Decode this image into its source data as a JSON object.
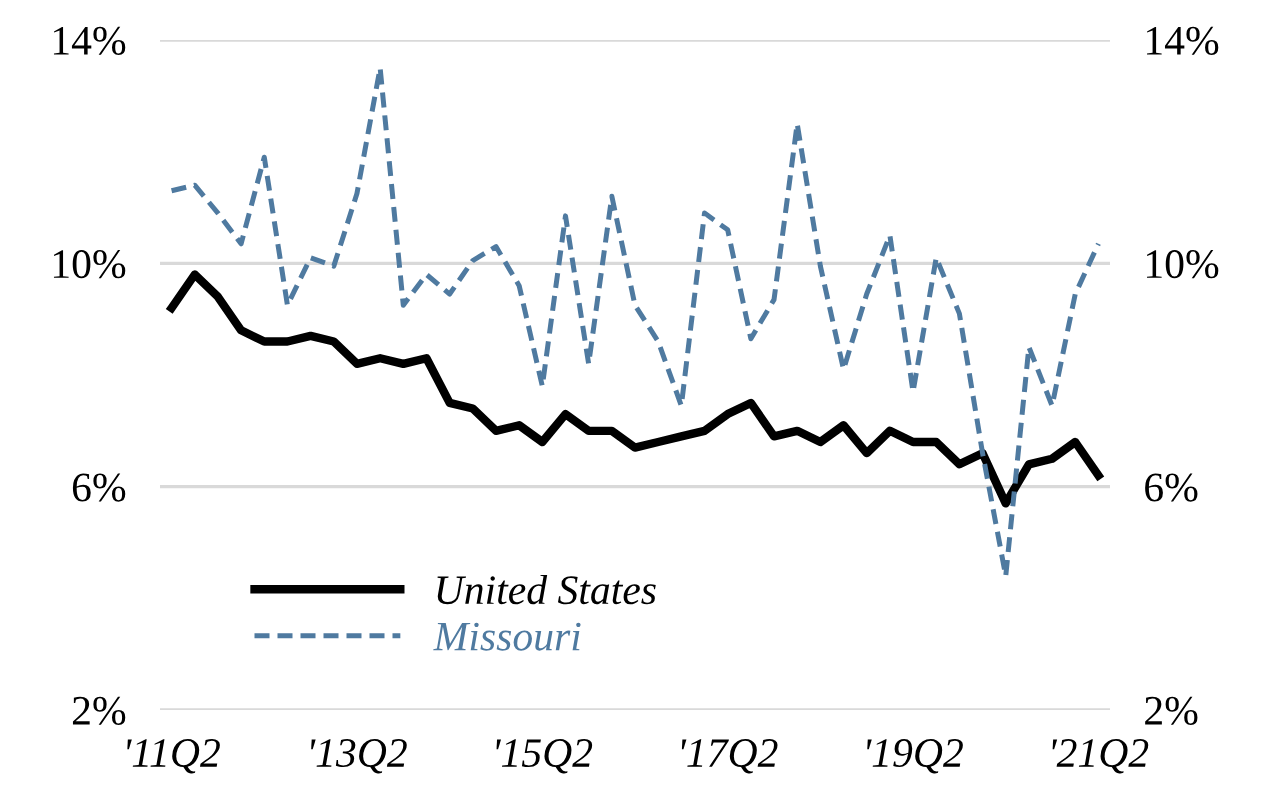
{
  "chart_data": {
    "type": "line",
    "categories": [
      "'11Q2",
      null,
      null,
      null,
      null,
      null,
      null,
      null,
      "'13Q2",
      null,
      null,
      null,
      null,
      null,
      null,
      null,
      "'15Q2",
      null,
      null,
      null,
      null,
      null,
      null,
      null,
      "'17Q2",
      null,
      null,
      null,
      null,
      null,
      null,
      null,
      "'19Q2",
      null,
      null,
      null,
      null,
      null,
      null,
      null,
      "'21Q2"
    ],
    "series": [
      {
        "name": "United States",
        "color": "#000000",
        "line_style": "solid",
        "values": [
          9.2,
          9.8,
          9.4,
          8.8,
          8.6,
          8.6,
          8.7,
          8.6,
          8.2,
          8.3,
          8.2,
          8.3,
          7.5,
          7.4,
          7.0,
          7.1,
          6.8,
          7.3,
          7.0,
          7.0,
          6.7,
          6.8,
          6.9,
          7.0,
          7.3,
          7.5,
          6.9,
          7.0,
          6.8,
          7.1,
          6.6,
          7.0,
          6.8,
          6.8,
          6.4,
          6.6,
          5.7,
          6.4,
          6.5,
          6.8,
          6.2
        ]
      },
      {
        "name": "Missouri",
        "color": "#4f7aa0",
        "line_style": "dashed",
        "values": [
          11.3,
          11.4,
          10.9,
          10.35,
          11.9,
          9.25,
          10.1,
          9.95,
          11.25,
          13.5,
          9.25,
          9.8,
          9.45,
          10.05,
          10.3,
          9.6,
          7.8,
          10.85,
          8.2,
          11.2,
          9.25,
          8.6,
          7.45,
          10.9,
          10.6,
          8.65,
          9.35,
          12.5,
          9.95,
          8.1,
          9.45,
          10.5,
          7.7,
          10.1,
          9.1,
          6.6,
          4.4,
          8.5,
          7.45,
          9.45,
          10.35
        ]
      }
    ],
    "ylim": [
      2,
      14
    ],
    "yticks": [
      {
        "value": 2,
        "label": "2%"
      },
      {
        "value": 6,
        "label": "6%"
      },
      {
        "value": 10,
        "label": "10%"
      },
      {
        "value": 14,
        "label": "14%"
      }
    ],
    "y2lim": [
      2,
      14
    ],
    "y2ticks": [
      {
        "value": 2,
        "label": "2%"
      },
      {
        "value": 6,
        "label": "6%"
      },
      {
        "value": 10,
        "label": "10%"
      },
      {
        "value": 14,
        "label": "14%"
      }
    ],
    "grid": "y",
    "legend": "bottom left",
    "marker": "none"
  }
}
